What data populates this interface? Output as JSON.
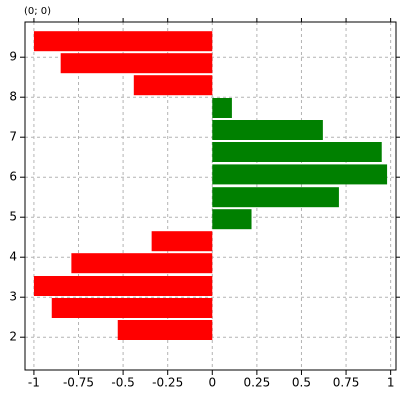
{
  "chart_data": {
    "type": "hbar",
    "title": "(0; 0)",
    "y": [
      2.18,
      2.73,
      3.28,
      3.85,
      4.4,
      4.95,
      5.5,
      6.07,
      6.63,
      7.18,
      7.73,
      8.3,
      8.85,
      9.4
    ],
    "values": [
      -0.53,
      -0.9,
      -1.0,
      -0.79,
      -0.34,
      0.22,
      0.71,
      0.98,
      0.95,
      0.62,
      0.11,
      -0.44,
      -0.85,
      -1.0
    ],
    "color_positive": "#008000",
    "color_negative": "#ff0000",
    "xlim": [
      -1.05,
      1.03
    ],
    "ylim": [
      1.18,
      9.88
    ],
    "xticks": [
      -1,
      -0.75,
      -0.5,
      -0.25,
      0,
      0.25,
      0.5,
      0.75,
      1
    ],
    "yticks": [
      2,
      3,
      4,
      5,
      6,
      7,
      8,
      9
    ],
    "grid": true
  }
}
